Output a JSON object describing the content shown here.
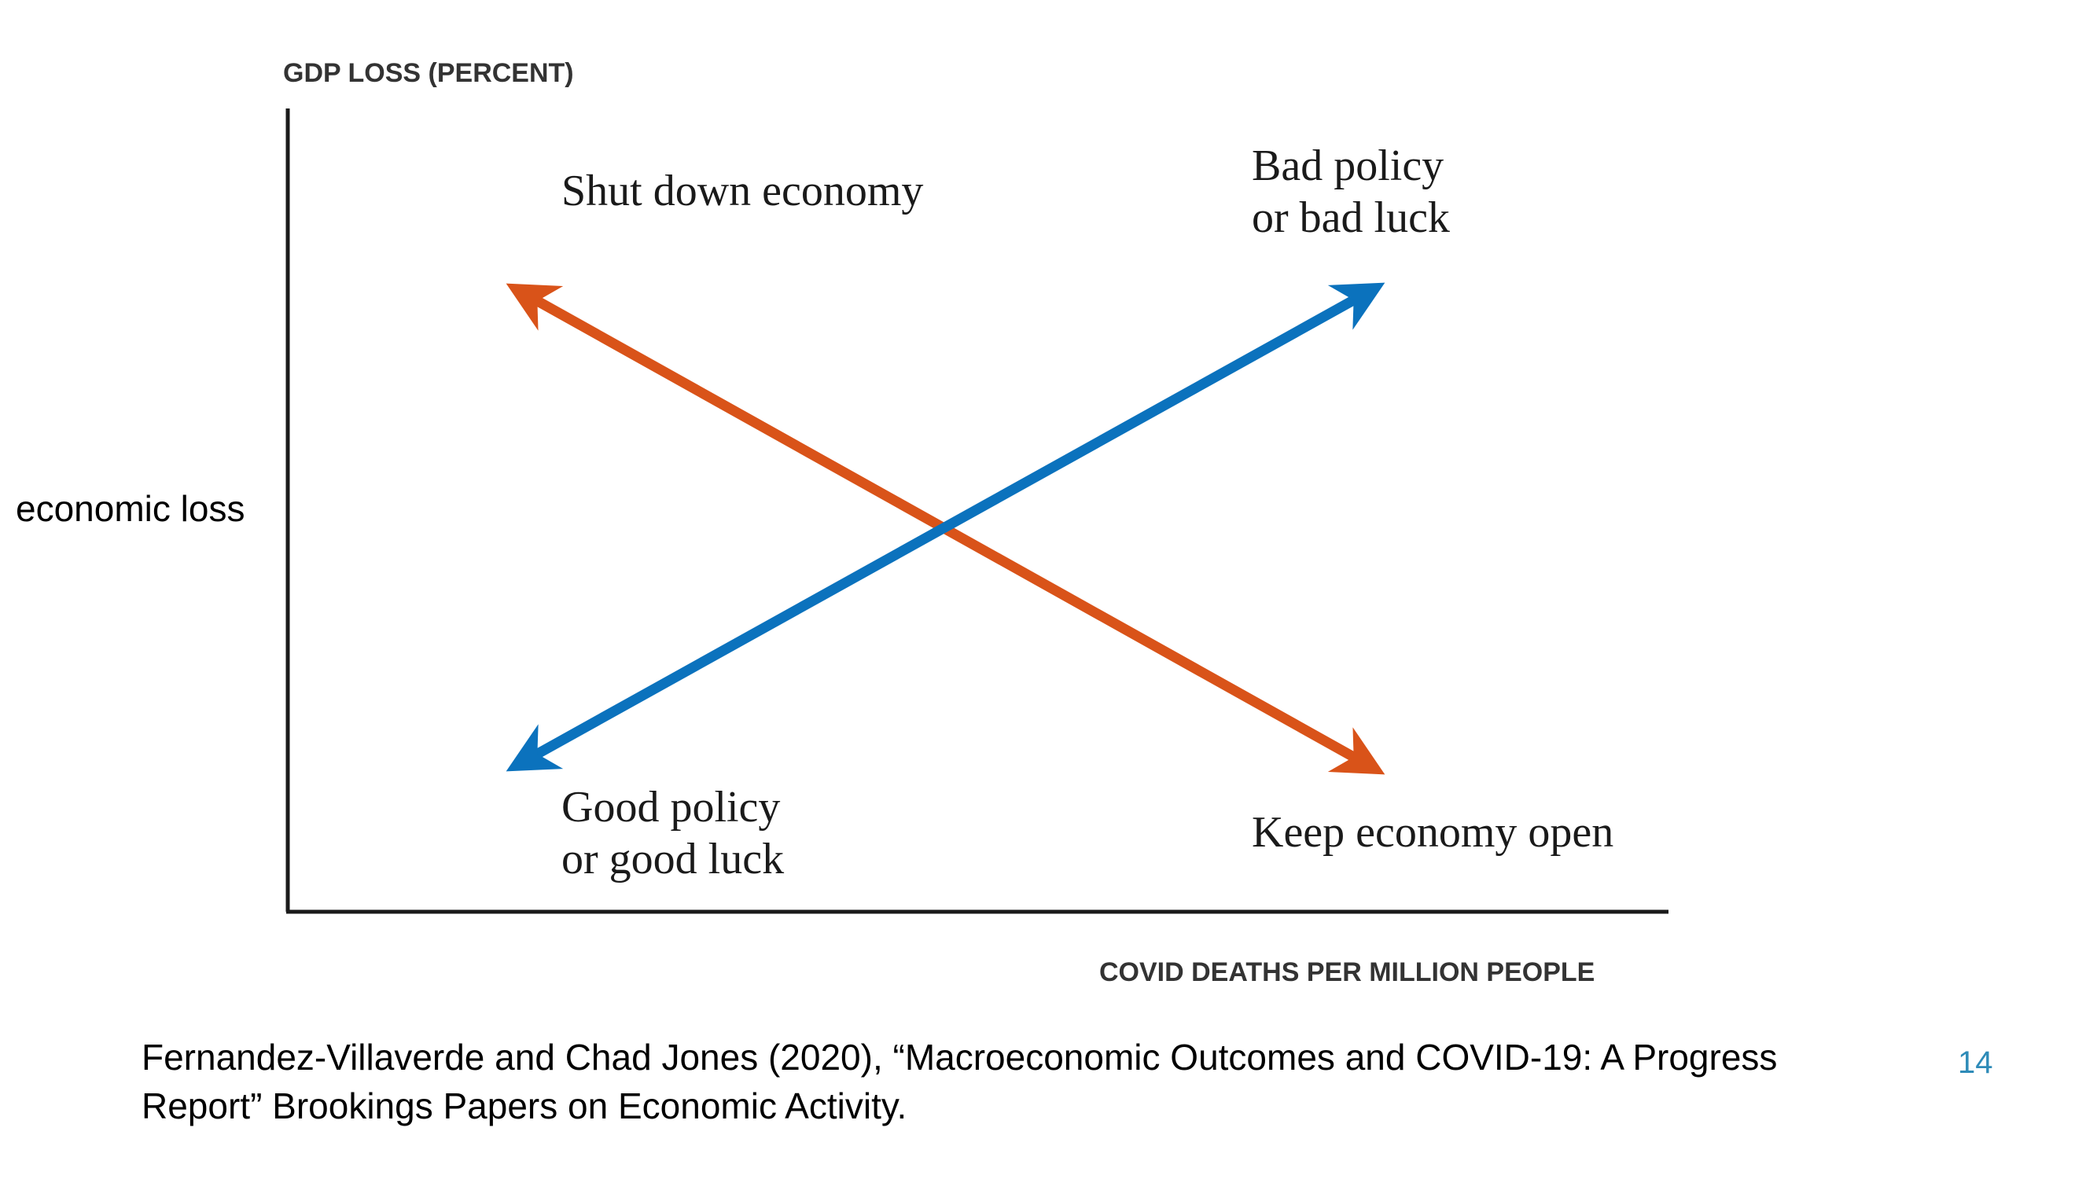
{
  "diagram": {
    "y_axis_title": "GDP LOSS (PERCENT)",
    "x_axis_title": "COVID DEATHS PER MILLION PEOPLE",
    "side_label": "economic loss",
    "quadrants": {
      "top_left": "Shut down economy",
      "top_right_line1": "Bad policy",
      "top_right_line2": "or bad luck",
      "bottom_left_line1": "Good policy",
      "bottom_left_line2": "or good luck",
      "bottom_right": "Keep economy open"
    },
    "arrows": [
      {
        "name": "orange-arrow",
        "color": "#d95319",
        "direction": "top-left to bottom-right, double-headed"
      },
      {
        "name": "blue-arrow",
        "color": "#0b72bd",
        "direction": "bottom-left to top-right, double-headed"
      }
    ]
  },
  "citation": {
    "line1": "Fernandez-Villaverde and Chad Jones (2020), “Macroeconomic Outcomes and COVID-19: A Progress",
    "line2": "Report” Brookings Papers on Economic Activity."
  },
  "page_number": "14"
}
